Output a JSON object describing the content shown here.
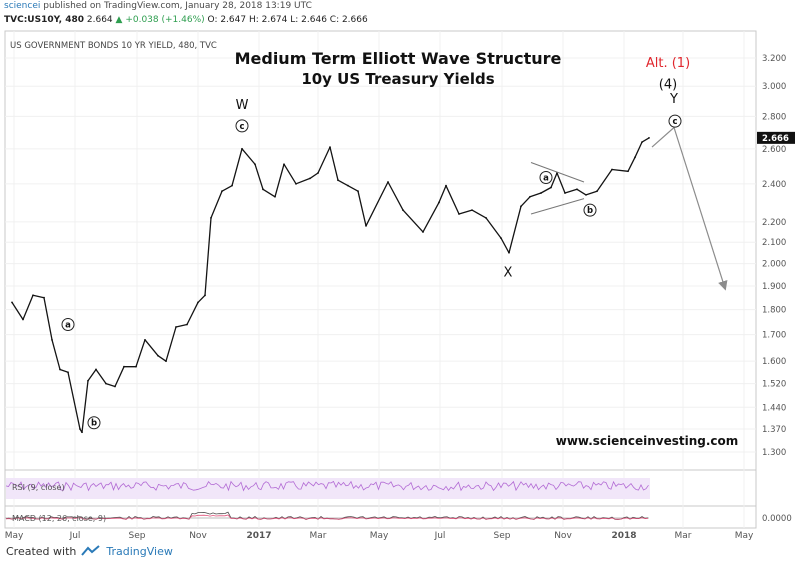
{
  "header": {
    "user": "sciencei",
    "published": "published on TradingView.com, January 28, 2018 13:19 UTC",
    "symbol": "TVC:US10Y, 480",
    "last": "2.664",
    "change": "+0.038 (+1.46%)",
    "ohlc": "O: 2.647 H: 2.674 L: 2.646 C: 2.666"
  },
  "footer": {
    "created_with": "Created with",
    "brand": "TradingView"
  },
  "colors": {
    "price": "#141414",
    "rsi": "#b26ad4",
    "rsi_band": "#f1e6f9",
    "macd": "#4a4a4a",
    "signal": "#e0527a",
    "wave_red": "#e0262d",
    "projection": "#8c8c8c",
    "grid": "#f0f0f0"
  },
  "chart_data": {
    "type": "line",
    "instrument_label": "US GOVERNMENT BONDS 10 YR YIELD, 480, TVC",
    "title": "Medium Term Elliott Wave Structure",
    "subtitle": "10y US Treasury Yields",
    "watermark": "www.scienceinvesting.com",
    "x_ticks": [
      "May",
      "Jul",
      "Sep",
      "Nov",
      "2017",
      "Mar",
      "May",
      "Jul",
      "Sep",
      "Nov",
      "2018",
      "Mar",
      "May"
    ],
    "y_ticks": [
      "3.200",
      "3.000",
      "2.800",
      "2.600",
      "2.400",
      "2.200",
      "2.100",
      "2.000",
      "1.900",
      "1.800",
      "1.700",
      "1.600",
      "1.520",
      "1.440",
      "1.370",
      "1.300"
    ],
    "last_value": "2.666",
    "ylim": [
      1.3,
      3.2
    ],
    "y_scale": "log",
    "series": [
      {
        "points": [
          [
            "2016-04-29",
            1.83
          ],
          [
            "2016-05-10",
            1.76
          ],
          [
            "2016-05-20",
            1.86
          ],
          [
            "2016-05-31",
            1.85
          ],
          [
            "2016-06-08",
            1.68
          ],
          [
            "2016-06-16",
            1.57
          ],
          [
            "2016-06-24",
            1.56
          ],
          [
            "2016-07-06",
            1.37
          ],
          [
            "2016-07-08",
            1.36
          ],
          [
            "2016-07-14",
            1.53
          ],
          [
            "2016-07-22",
            1.57
          ],
          [
            "2016-08-01",
            1.52
          ],
          [
            "2016-08-10",
            1.51
          ],
          [
            "2016-08-19",
            1.58
          ],
          [
            "2016-08-31",
            1.58
          ],
          [
            "2016-09-09",
            1.68
          ],
          [
            "2016-09-22",
            1.62
          ],
          [
            "2016-09-30",
            1.6
          ],
          [
            "2016-10-10",
            1.73
          ],
          [
            "2016-10-21",
            1.74
          ],
          [
            "2016-11-01",
            1.83
          ],
          [
            "2016-11-08",
            1.86
          ],
          [
            "2016-11-14",
            2.22
          ],
          [
            "2016-11-25",
            2.36
          ],
          [
            "2016-12-05",
            2.39
          ],
          [
            "2016-12-15",
            2.6
          ],
          [
            "2016-12-28",
            2.51
          ],
          [
            "2017-01-05",
            2.37
          ],
          [
            "2017-01-17",
            2.33
          ],
          [
            "2017-01-26",
            2.51
          ],
          [
            "2017-02-07",
            2.4
          ],
          [
            "2017-02-21",
            2.43
          ],
          [
            "2017-03-01",
            2.46
          ],
          [
            "2017-03-13",
            2.61
          ],
          [
            "2017-03-21",
            2.42
          ],
          [
            "2017-03-31",
            2.39
          ],
          [
            "2017-04-10",
            2.36
          ],
          [
            "2017-04-18",
            2.18
          ],
          [
            "2017-05-10",
            2.41
          ],
          [
            "2017-05-25",
            2.26
          ],
          [
            "2017-06-14",
            2.15
          ],
          [
            "2017-06-30",
            2.3
          ],
          [
            "2017-07-07",
            2.39
          ],
          [
            "2017-07-20",
            2.24
          ],
          [
            "2017-08-02",
            2.26
          ],
          [
            "2017-08-16",
            2.22
          ],
          [
            "2017-08-31",
            2.12
          ],
          [
            "2017-09-08",
            2.05
          ],
          [
            "2017-09-20",
            2.28
          ],
          [
            "2017-09-29",
            2.33
          ],
          [
            "2017-10-10",
            2.35
          ],
          [
            "2017-10-20",
            2.38
          ],
          [
            "2017-10-26",
            2.46
          ],
          [
            "2017-11-03",
            2.35
          ],
          [
            "2017-11-15",
            2.37
          ],
          [
            "2017-11-24",
            2.34
          ],
          [
            "2017-12-05",
            2.36
          ],
          [
            "2017-12-20",
            2.48
          ],
          [
            "2018-01-05",
            2.47
          ],
          [
            "2018-01-12",
            2.55
          ],
          [
            "2018-01-19",
            2.64
          ],
          [
            "2018-01-26",
            2.666
          ]
        ]
      }
    ],
    "wave_labels": [
      {
        "text": "a",
        "circled": true,
        "x": "2016-06-24",
        "y": 1.74
      },
      {
        "text": "b",
        "circled": true,
        "x": "2016-07-20",
        "y": 1.39
      },
      {
        "text": "W",
        "circled": false,
        "x": "2016-12-15",
        "y": 2.88
      },
      {
        "text": "c",
        "circled": true,
        "x": "2016-12-15",
        "y": 2.74
      },
      {
        "text": "X",
        "circled": false,
        "x": "2017-09-07",
        "y": 1.965
      },
      {
        "text": "a",
        "circled": true,
        "x": "2017-10-15",
        "y": 2.435
      },
      {
        "text": "b",
        "circled": true,
        "x": "2017-11-28",
        "y": 2.26
      },
      {
        "text": "Alt. (1)",
        "circled": false,
        "color": "red",
        "x": "2018-02-14",
        "y": 3.17
      },
      {
        "text": "(4)",
        "circled": false,
        "x": "2018-02-14",
        "y": 3.02
      },
      {
        "text": "Y",
        "circled": false,
        "x": "2018-02-20",
        "y": 2.92
      },
      {
        "text": "c",
        "circled": true,
        "x": "2018-02-21",
        "y": 2.77
      }
    ],
    "triangle": {
      "upper": [
        [
          "2017-09-30",
          2.52
        ],
        [
          "2017-11-22",
          2.41
        ]
      ],
      "lower": [
        [
          "2017-09-30",
          2.24
        ],
        [
          "2017-11-22",
          2.32
        ]
      ]
    },
    "projection": [
      [
        "2018-01-29",
        2.61
      ],
      [
        "2018-02-20",
        2.73
      ],
      [
        "2018-04-12",
        1.89
      ]
    ],
    "rsi": {
      "label": "RSI (9, close)"
    },
    "macd": {
      "label": "MACD (12, 26, close, 9)",
      "axis_label": "0.0000"
    }
  }
}
